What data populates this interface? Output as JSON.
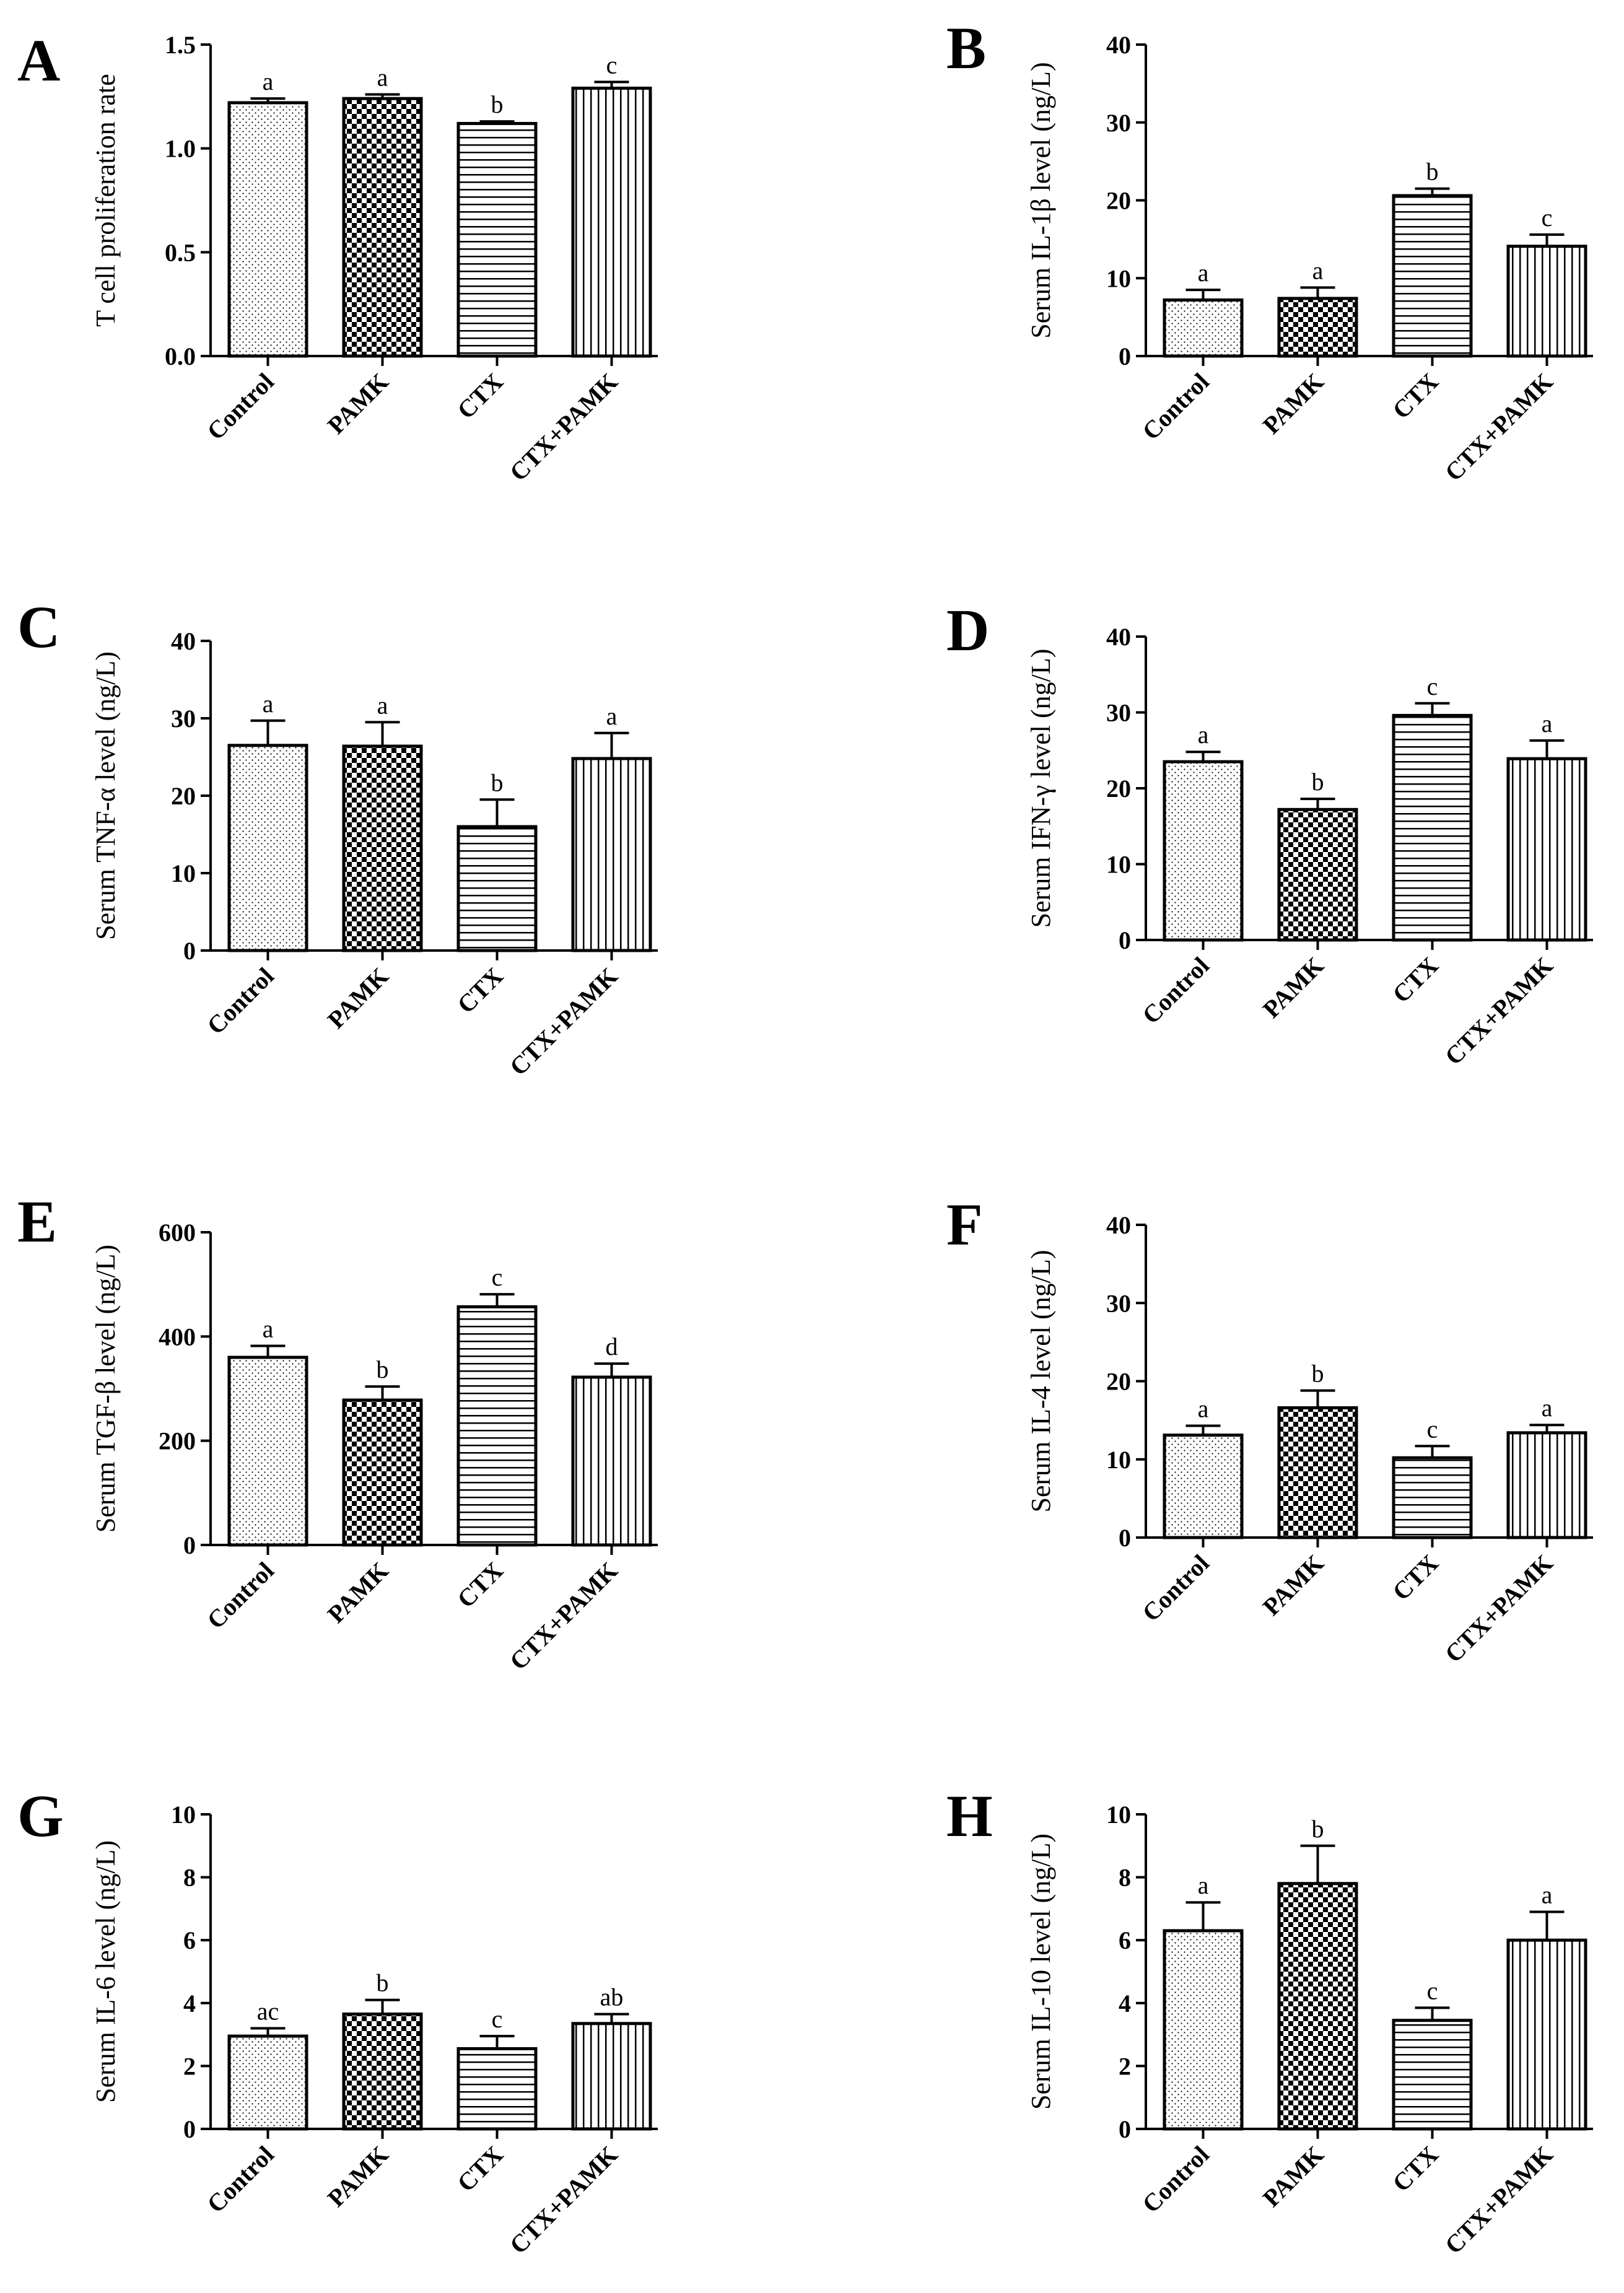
{
  "chart_data": [
    {
      "panel": "A",
      "type": "bar",
      "ylabel": "T cell proliferation rate",
      "categories": [
        "Control",
        "PAMK",
        "CTX",
        "CTX+PAMK"
      ],
      "values": [
        1.22,
        1.24,
        1.12,
        1.29
      ],
      "errors": [
        0.02,
        0.02,
        0.01,
        0.03
      ],
      "significance": [
        "a",
        "a",
        "b",
        "c"
      ],
      "ylim": [
        0,
        1.5
      ],
      "yticks": [
        "0.0",
        "0.5",
        "1.0",
        "1.5"
      ]
    },
    {
      "panel": "B",
      "type": "bar",
      "ylabel": "Serum IL-1β level (ng/L)",
      "categories": [
        "Control",
        "PAMK",
        "CTX",
        "CTX+PAMK"
      ],
      "values": [
        7.2,
        7.4,
        20.6,
        14.1
      ],
      "errors": [
        1.3,
        1.4,
        0.9,
        1.5
      ],
      "significance": [
        "a",
        "a",
        "b",
        "c"
      ],
      "ylim": [
        0,
        40
      ],
      "yticks": [
        "0",
        "10",
        "20",
        "30",
        "40"
      ]
    },
    {
      "panel": "C",
      "type": "bar",
      "ylabel": "Serum TNF-α level (ng/L)",
      "categories": [
        "Control",
        "PAMK",
        "CTX",
        "CTX+PAMK"
      ],
      "values": [
        26.5,
        26.4,
        16.0,
        24.8
      ],
      "errors": [
        3.2,
        3.1,
        3.5,
        3.3
      ],
      "significance": [
        "a",
        "a",
        "b",
        "a"
      ],
      "ylim": [
        0,
        40
      ],
      "yticks": [
        "0",
        "10",
        "20",
        "30",
        "40"
      ]
    },
    {
      "panel": "D",
      "type": "bar",
      "ylabel": "Serum IFN-γ level (ng/L)",
      "categories": [
        "Control",
        "PAMK",
        "CTX",
        "CTX+PAMK"
      ],
      "values": [
        23.5,
        17.2,
        29.6,
        23.9
      ],
      "errors": [
        1.3,
        1.4,
        1.6,
        2.4
      ],
      "significance": [
        "a",
        "b",
        "c",
        "a"
      ],
      "ylim": [
        0,
        40
      ],
      "yticks": [
        "0",
        "10",
        "20",
        "30",
        "40"
      ]
    },
    {
      "panel": "E",
      "type": "bar",
      "ylabel": "Serum TGF-β level (ng/L)",
      "categories": [
        "Control",
        "PAMK",
        "CTX",
        "CTX+PAMK"
      ],
      "values": [
        360,
        278,
        457,
        322
      ],
      "errors": [
        22,
        26,
        24,
        26
      ],
      "significance": [
        "a",
        "b",
        "c",
        "d"
      ],
      "ylim": [
        0,
        600
      ],
      "yticks": [
        "0",
        "200",
        "400",
        "600"
      ]
    },
    {
      "panel": "F",
      "type": "bar",
      "ylabel": "Serum IL-4 level (ng/L)",
      "categories": [
        "Control",
        "PAMK",
        "CTX",
        "CTX+PAMK"
      ],
      "values": [
        13.1,
        16.6,
        10.2,
        13.4
      ],
      "errors": [
        1.2,
        2.2,
        1.5,
        1.0
      ],
      "significance": [
        "a",
        "b",
        "c",
        "a"
      ],
      "ylim": [
        0,
        40
      ],
      "yticks": [
        "0",
        "10",
        "20",
        "30",
        "40"
      ]
    },
    {
      "panel": "G",
      "type": "bar",
      "ylabel": "Serum IL-6 level (ng/L)",
      "categories": [
        "Control",
        "PAMK",
        "CTX",
        "CTX+PAMK"
      ],
      "values": [
        2.95,
        3.65,
        2.55,
        3.35
      ],
      "errors": [
        0.25,
        0.45,
        0.4,
        0.3
      ],
      "significance": [
        "ac",
        "b",
        "c",
        "ab"
      ],
      "ylim": [
        0,
        10
      ],
      "yticks": [
        "0",
        "2",
        "4",
        "6",
        "8",
        "10"
      ]
    },
    {
      "panel": "H",
      "type": "bar",
      "ylabel": "Serum IL-10 level (ng/L)",
      "categories": [
        "Control",
        "PAMK",
        "CTX",
        "CTX+PAMK"
      ],
      "values": [
        6.3,
        7.8,
        3.45,
        6.0
      ],
      "errors": [
        0.9,
        1.2,
        0.4,
        0.9
      ],
      "significance": [
        "a",
        "b",
        "c",
        "a"
      ],
      "ylim": [
        0,
        10
      ],
      "yticks": [
        "0",
        "2",
        "4",
        "6",
        "8",
        "10"
      ]
    }
  ]
}
